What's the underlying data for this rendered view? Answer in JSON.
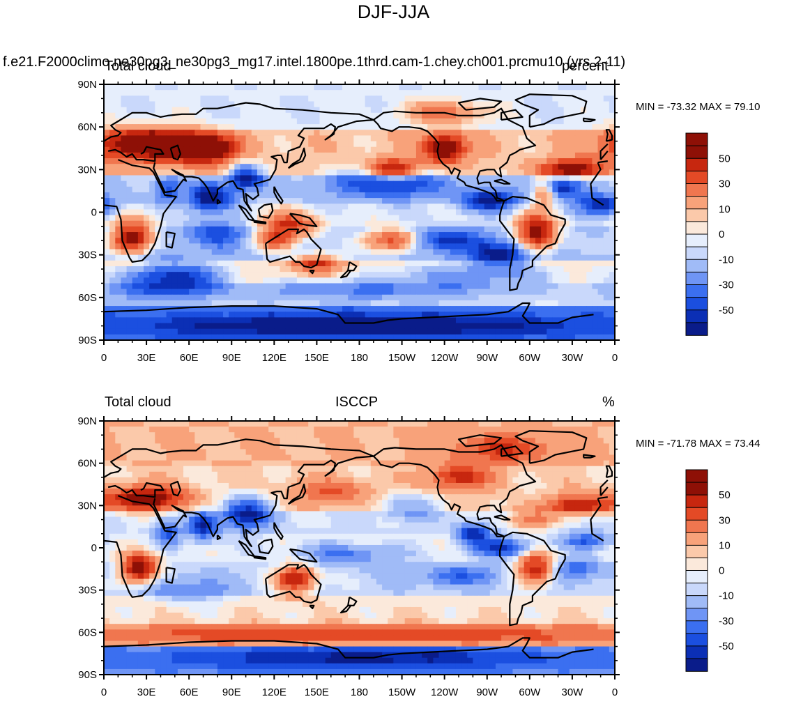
{
  "title": "DJF-JJA",
  "case_name": "f.e21.F2000climo.ne30pg3_ne30pg3_mg17.intel.1800pe.1thrd.cam-1.chey.ch001.prcmu10 (yrs 2-11)",
  "panels": [
    {
      "left_label": "Total cloud",
      "center_label": "",
      "right_label": "percent",
      "minmax": "MIN = -73.32 MAX =  79.10"
    },
    {
      "left_label": "Total cloud",
      "center_label": "ISCCP",
      "right_label": "%",
      "minmax": "MIN = -71.78 MAX =  73.44"
    }
  ],
  "colors": {
    "scale": [
      "#0a1c8a",
      "#0b2fb5",
      "#1b4fe0",
      "#3b6ff0",
      "#6f95f5",
      "#a0bbf7",
      "#c9d8fb",
      "#e6eefc",
      "#fbe9db",
      "#fbc9aa",
      "#f8a27a",
      "#f0764f",
      "#e44a26",
      "#c7270f",
      "#8e1006"
    ],
    "coast": "#000000"
  },
  "chart_data": {
    "type": "heatmap",
    "projection": "cylindrical equidistant, centered 180",
    "lat_ticks": [
      "90N",
      "60N",
      "30N",
      "0",
      "30S",
      "60S",
      "90S"
    ],
    "lon_ticks": [
      "0",
      "30E",
      "60E",
      "90E",
      "120E",
      "150E",
      "180",
      "150W",
      "120W",
      "90W",
      "60W",
      "30W",
      "0"
    ],
    "colorbar_levels": [
      -60,
      -50,
      -40,
      -30,
      -20,
      -10,
      -5,
      0,
      5,
      10,
      20,
      30,
      40,
      50,
      60
    ],
    "colorbar_labels": [
      "50",
      "30",
      "10",
      "0",
      "-10",
      "-30",
      "-50"
    ],
    "xlim": [
      0,
      360
    ],
    "ylim": [
      -90,
      90
    ],
    "fields": [
      {
        "name": "model",
        "blobs": [
          [
            8,
            15,
            45,
            6,
            6,
            -35
          ],
          [
            3,
            -45,
            50,
            7,
            22,
            -55
          ],
          [
            4,
            10,
            75,
            7,
            10,
            -65
          ],
          [
            5,
            25,
            100,
            6,
            8,
            -60
          ],
          [
            4,
            20,
            200,
            7,
            28,
            -45
          ],
          [
            5,
            8,
            272,
            5,
            14,
            -60
          ],
          [
            4,
            18,
            320,
            5,
            12,
            -55
          ],
          [
            4,
            5,
            350,
            5,
            12,
            -55
          ],
          [
            3,
            -20,
            240,
            6,
            20,
            -45
          ],
          [
            3,
            -30,
            280,
            6,
            14,
            -55
          ],
          [
            3,
            -45,
            260,
            6,
            40,
            -30
          ],
          [
            3,
            -55,
            180,
            5,
            50,
            -25
          ],
          [
            2,
            -80,
            180,
            6,
            120,
            -45
          ],
          [
            2,
            -55,
            40,
            6,
            30,
            -25
          ],
          [
            2,
            -15,
            80,
            7,
            14,
            -35
          ],
          [
            5,
            48,
            30,
            8,
            25,
            65
          ],
          [
            5,
            45,
            70,
            7,
            15,
            70
          ],
          [
            6,
            -18,
            20,
            8,
            10,
            70
          ],
          [
            6,
            -15,
            305,
            9,
            10,
            70
          ],
          [
            5,
            45,
            240,
            7,
            10,
            65
          ],
          [
            4,
            30,
            330,
            5,
            15,
            55
          ],
          [
            4,
            30,
            205,
            5,
            12,
            55
          ],
          [
            4,
            -10,
            130,
            7,
            15,
            45
          ],
          [
            3,
            -20,
            205,
            6,
            15,
            55
          ],
          [
            4,
            15,
            310,
            6,
            6,
            55
          ],
          [
            2,
            70,
            240,
            6,
            20,
            30
          ],
          [
            3,
            -35,
            150,
            5,
            12,
            40
          ],
          [
            3,
            -20,
            120,
            5,
            10,
            35
          ]
        ]
      },
      {
        "name": "ISCCP",
        "blobs": [
          [
            6,
            15,
            70,
            7,
            7,
            -55
          ],
          [
            4,
            25,
            100,
            8,
            12,
            -60
          ],
          [
            3,
            10,
            45,
            6,
            6,
            -40
          ],
          [
            3,
            0,
            280,
            5,
            14,
            -50
          ],
          [
            4,
            10,
            260,
            5,
            8,
            -55
          ],
          [
            4,
            5,
            340,
            4,
            12,
            -40
          ],
          [
            2,
            -78,
            180,
            6,
            100,
            -40
          ],
          [
            3,
            -15,
            330,
            6,
            15,
            -30
          ],
          [
            3,
            -20,
            250,
            5,
            20,
            -30
          ],
          [
            3,
            30,
            215,
            6,
            15,
            -25
          ],
          [
            3,
            -5,
            170,
            5,
            25,
            -30
          ],
          [
            3,
            -30,
            60,
            6,
            20,
            -25
          ],
          [
            6,
            -15,
            25,
            7,
            9,
            70
          ],
          [
            6,
            -15,
            305,
            8,
            10,
            60
          ],
          [
            5,
            -22,
            135,
            7,
            10,
            60
          ],
          [
            4,
            35,
            30,
            6,
            20,
            55
          ],
          [
            5,
            30,
            335,
            5,
            15,
            45
          ],
          [
            3,
            -62,
            180,
            5,
            140,
            30
          ],
          [
            3,
            50,
            250,
            6,
            15,
            40
          ],
          [
            3,
            40,
            160,
            6,
            20,
            25
          ],
          [
            2,
            70,
            280,
            7,
            25,
            30
          ],
          [
            3,
            20,
            300,
            5,
            12,
            30
          ]
        ]
      }
    ]
  }
}
